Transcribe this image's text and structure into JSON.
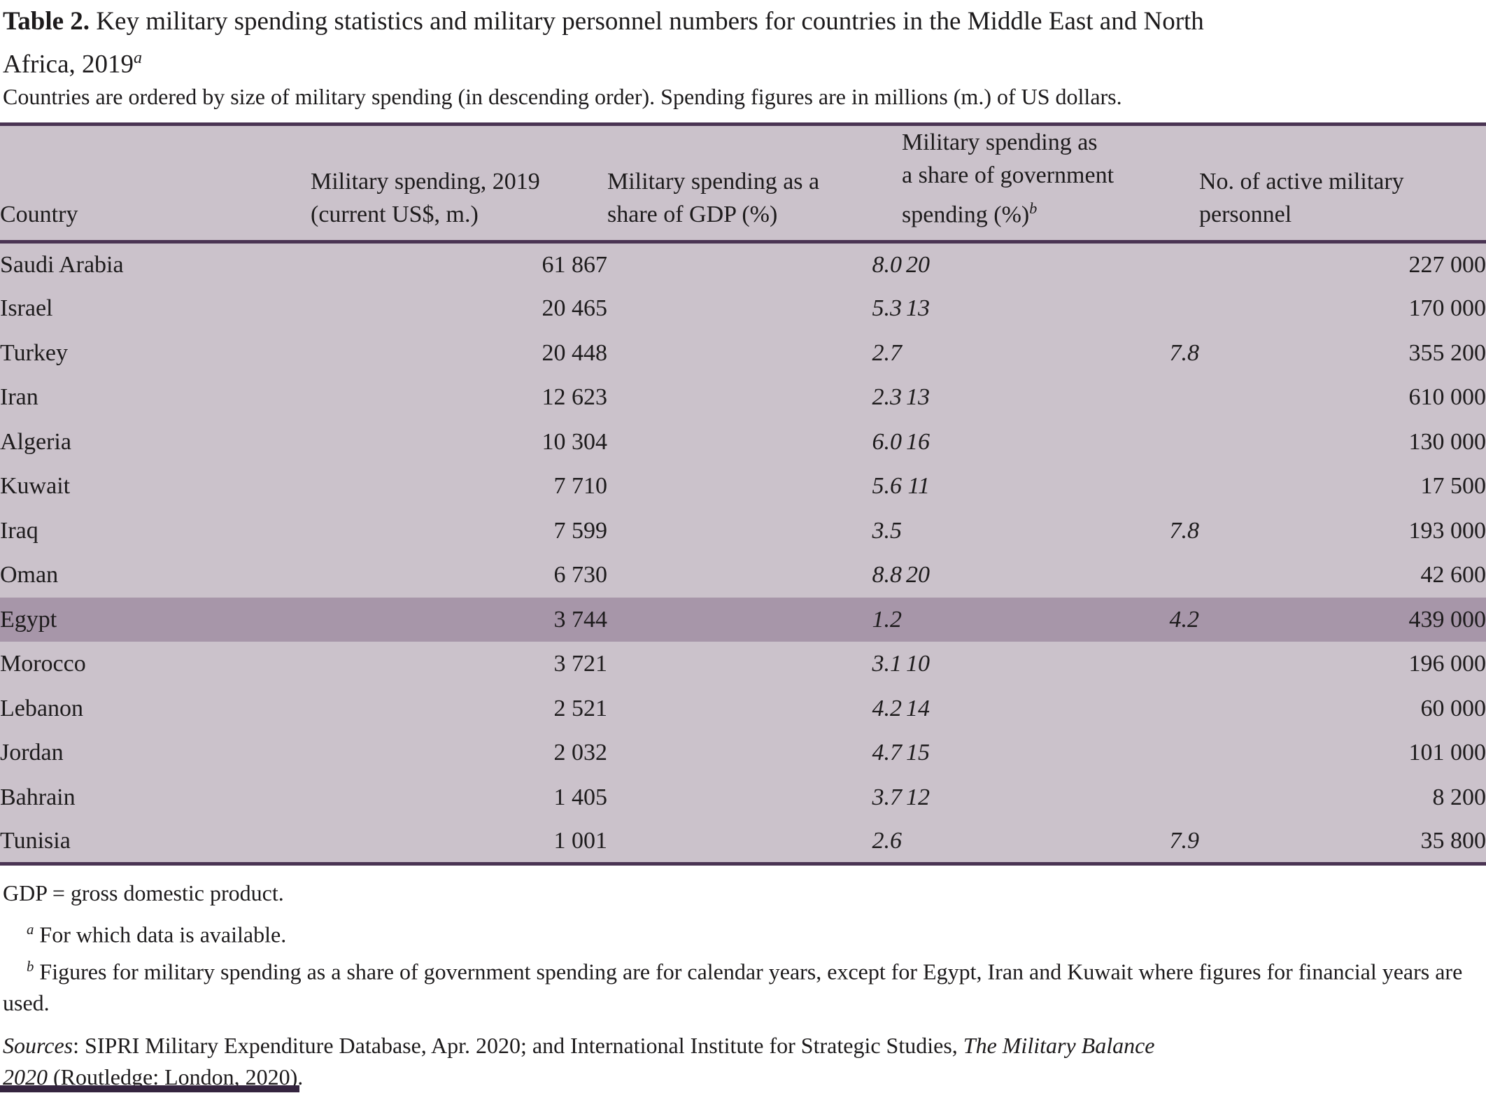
{
  "title": {
    "bold": "Table 2.",
    "line1_rest": " Key military spending statistics and military personnel numbers for countries in the Middle East and North",
    "line2": "Africa, 2019",
    "sup": "a"
  },
  "subtitle": "Countries are ordered by size of military spending (in descending order). Spending figures are in millions (m.) of US dollars.",
  "table": {
    "columns": [
      {
        "id": "country",
        "lines": [
          "Country"
        ]
      },
      {
        "id": "spending",
        "lines": [
          "Military spending, 2019",
          "(current US$, m.)"
        ]
      },
      {
        "id": "gdp-share",
        "lines": [
          "Military spending as a",
          "share of GDP (%)"
        ]
      },
      {
        "id": "gov-share",
        "lines": [
          "Military spending as",
          "a share of government",
          "spending (%)"
        ],
        "sup": "b"
      },
      {
        "id": "personnel",
        "lines": [
          "No. of active military",
          "personnel"
        ]
      }
    ],
    "rows": [
      {
        "country": "Saudi Arabia",
        "spending": "61 867",
        "gdp_share": "8.0",
        "gov_share": "20",
        "personnel": "227 000"
      },
      {
        "country": "Israel",
        "spending": "20 465",
        "gdp_share": "5.3",
        "gov_share": "13",
        "personnel": "170 000"
      },
      {
        "country": "Turkey",
        "spending": "20 448",
        "gdp_share": "2.7",
        "gov_share": "7.8",
        "personnel": "355 200"
      },
      {
        "country": "Iran",
        "spending": "12 623",
        "gdp_share": "2.3",
        "gov_share": "13",
        "personnel": "610 000"
      },
      {
        "country": "Algeria",
        "spending": "10 304",
        "gdp_share": "6.0",
        "gov_share": "16",
        "personnel": "130 000"
      },
      {
        "country": "Kuwait",
        "spending": "7 710",
        "gdp_share": "5.6",
        "gov_share": "11",
        "personnel": "17 500"
      },
      {
        "country": "Iraq",
        "spending": "7 599",
        "gdp_share": "3.5",
        "gov_share": "7.8",
        "personnel": "193 000"
      },
      {
        "country": "Oman",
        "spending": "6 730",
        "gdp_share": "8.8",
        "gov_share": "20",
        "personnel": "42 600"
      },
      {
        "country": "Egypt",
        "spending": "3 744",
        "gdp_share": "1.2",
        "gov_share": "4.2",
        "personnel": "439 000",
        "highlight": true
      },
      {
        "country": "Morocco",
        "spending": "3 721",
        "gdp_share": "3.1",
        "gov_share": "10",
        "personnel": "196 000"
      },
      {
        "country": "Lebanon",
        "spending": "2 521",
        "gdp_share": "4.2",
        "gov_share": "14",
        "personnel": "60 000"
      },
      {
        "country": "Jordan",
        "spending": "2 032",
        "gdp_share": "4.7",
        "gov_share": "15",
        "personnel": "101 000"
      },
      {
        "country": "Bahrain",
        "spending": "1 405",
        "gdp_share": "3.7",
        "gov_share": "12",
        "personnel": "8 200"
      },
      {
        "country": "Tunisia",
        "spending": "1 001",
        "gdp_share": "2.6",
        "gov_share": "7.9",
        "personnel": "35 800"
      }
    ]
  },
  "notes": {
    "gdp_def": "GDP = gross domestic product.",
    "footnote_a": {
      "sup": "a",
      "text": " For which data is available."
    },
    "footnote_b": {
      "sup": "b",
      "text": " Figures for military spending as a share of government spending are for calendar years, except for Egypt, Iran and Kuwait where figures for financial years are used."
    },
    "sources": {
      "label": "Sources",
      "text": ": SIPRI Military Expenditure Database, Apr. 2020; and International Institute for Strategic Studies, ",
      "italic_1": "The Military Balance",
      "italic_2": "2020",
      "tail": " (Routledge: London, 2020)."
    }
  },
  "colors": {
    "band": "#cbc2cb",
    "highlight": "#a796a9",
    "rule": "#4a3453",
    "text": "#1d1b1c",
    "bar": "#34243f"
  }
}
